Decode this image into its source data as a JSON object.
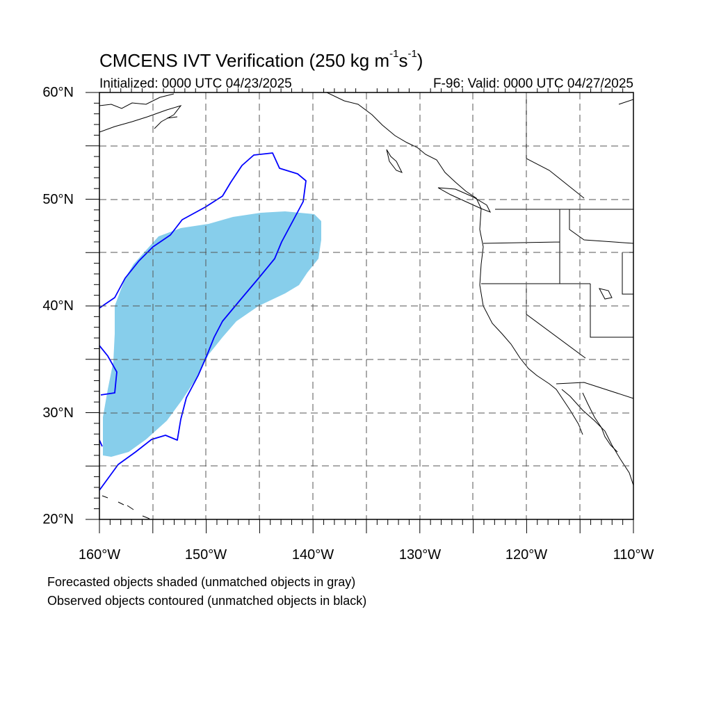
{
  "figure": {
    "title_main": "CMCENS IVT Verification (250 kg m",
    "title_sup1": "-1",
    "title_mid": "s",
    "title_sup2": "-1",
    "title_end": ")",
    "initialized": "Initialized: 0000 UTC 04/23/2025",
    "valid": "F-96: Valid: 0000 UTC 04/27/2025",
    "caption_forecast": "Forecasted objects shaded (unmatched objects in gray)",
    "caption_observed": "Observed objects contoured (unmatched objects in black)"
  },
  "map": {
    "lon_range": [
      -160,
      -110
    ],
    "lat_range": [
      20,
      60
    ],
    "lat_labels": [
      "60°N",
      "50°N",
      "40°N",
      "30°N",
      "20°N"
    ],
    "lon_labels": [
      "160°W",
      "150°W",
      "140°W",
      "130°W",
      "120°W",
      "110°W"
    ],
    "colors": {
      "forecast_fill": "#87ceeb",
      "observed_contour": "#0000ff",
      "coastline": "#000000",
      "grid": "#555555"
    }
  }
}
